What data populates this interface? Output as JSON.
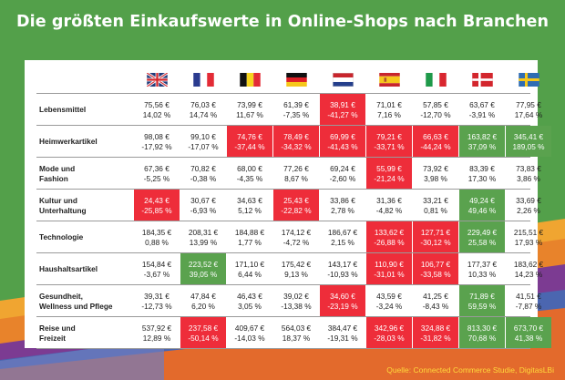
{
  "title": "Die größten Einkaufswerte in Online-Shops nach Branchen",
  "source": "Quelle: Connected Commerce Studie, DigitasLBi",
  "flags": [
    {
      "name": "uk-flag-icon"
    },
    {
      "name": "france-flag-icon"
    },
    {
      "name": "belgium-flag-icon"
    },
    {
      "name": "germany-flag-icon"
    },
    {
      "name": "netherlands-flag-icon"
    },
    {
      "name": "spain-flag-icon"
    },
    {
      "name": "italy-flag-icon"
    },
    {
      "name": "denmark-flag-icon"
    },
    {
      "name": "sweden-flag-icon"
    }
  ],
  "colors": {
    "red": "#ee2d3a",
    "green": "#5aa24e",
    "title": "#ffffff",
    "source": "#ffd93b"
  },
  "chart_data": {
    "type": "table",
    "columns": [
      "UK",
      "France",
      "Belgium",
      "Germany",
      "Netherlands",
      "Spain",
      "Italy",
      "Denmark",
      "Sweden"
    ],
    "rows": [
      {
        "label": "Lebensmittel",
        "cells": [
          {
            "value": "75,56 €",
            "change": "14,02 %",
            "highlight": ""
          },
          {
            "value": "76,03 €",
            "change": "14,74 %",
            "highlight": ""
          },
          {
            "value": "73,99 €",
            "change": "11,67 %",
            "highlight": ""
          },
          {
            "value": "61,39 €",
            "change": "-7,35 %",
            "highlight": ""
          },
          {
            "value": "38,91 €",
            "change": "-41,27 %",
            "highlight": "red"
          },
          {
            "value": "71,01 €",
            "change": "7,16 %",
            "highlight": ""
          },
          {
            "value": "57,85 €",
            "change": "-12,70 %",
            "highlight": ""
          },
          {
            "value": "63,67 €",
            "change": "-3,91 %",
            "highlight": ""
          },
          {
            "value": "77,95 €",
            "change": "17,64 %",
            "highlight": ""
          }
        ]
      },
      {
        "label": "Heimwerkartikel",
        "cells": [
          {
            "value": "98,08 €",
            "change": "-17,92 %",
            "highlight": ""
          },
          {
            "value": "99,10 €",
            "change": "-17,07 %",
            "highlight": ""
          },
          {
            "value": "74,76 €",
            "change": "-37,44 %",
            "highlight": "red"
          },
          {
            "value": "78,49 €",
            "change": "-34,32 %",
            "highlight": "red"
          },
          {
            "value": "69,99 €",
            "change": "-41,43 %",
            "highlight": "red"
          },
          {
            "value": "79,21 €",
            "change": "-33,71 %",
            "highlight": "red"
          },
          {
            "value": "66,63 €",
            "change": "-44,24 %",
            "highlight": "red"
          },
          {
            "value": "163,82 €",
            "change": "37,09 %",
            "highlight": "green"
          },
          {
            "value": "345,41 €",
            "change": "189,05 %",
            "highlight": "green"
          }
        ]
      },
      {
        "label": "Mode und\nFashion",
        "cells": [
          {
            "value": "67,36 €",
            "change": "-5,25 %",
            "highlight": ""
          },
          {
            "value": "70,82 €",
            "change": "-0,38 %",
            "highlight": ""
          },
          {
            "value": "68,00 €",
            "change": "-4,35 %",
            "highlight": ""
          },
          {
            "value": "77,26 €",
            "change": "8,67 %",
            "highlight": ""
          },
          {
            "value": "69,24 €",
            "change": "-2,60 %",
            "highlight": ""
          },
          {
            "value": "55,99 €",
            "change": "-21,24 %",
            "highlight": "red"
          },
          {
            "value": "73,92 €",
            "change": "3,98 %",
            "highlight": ""
          },
          {
            "value": "83,39 €",
            "change": "17,30 %",
            "highlight": ""
          },
          {
            "value": "73,83 €",
            "change": "3,86 %",
            "highlight": ""
          }
        ]
      },
      {
        "label": "Kultur und\nUnterhaltung",
        "cells": [
          {
            "value": "24,43 €",
            "change": "-25,85 %",
            "highlight": "red"
          },
          {
            "value": "30,67 €",
            "change": "-6,93 %",
            "highlight": ""
          },
          {
            "value": "34,63 €",
            "change": "5,12 %",
            "highlight": ""
          },
          {
            "value": "25,43 €",
            "change": "-22,82 %",
            "highlight": "red"
          },
          {
            "value": "33,86 €",
            "change": "2,78 %",
            "highlight": ""
          },
          {
            "value": "31,36 €",
            "change": "-4,82 %",
            "highlight": ""
          },
          {
            "value": "33,21 €",
            "change": "0,81 %",
            "highlight": ""
          },
          {
            "value": "49,24 €",
            "change": "49,46 %",
            "highlight": "green"
          },
          {
            "value": "33,69 €",
            "change": "2,26 %",
            "highlight": ""
          }
        ]
      },
      {
        "label": "Technologie",
        "cells": [
          {
            "value": "184,35 €",
            "change": "0,88 %",
            "highlight": ""
          },
          {
            "value": "208,31 €",
            "change": "13,99 %",
            "highlight": ""
          },
          {
            "value": "184,88 €",
            "change": "1,77 %",
            "highlight": ""
          },
          {
            "value": "174,12 €",
            "change": "-4,72 %",
            "highlight": ""
          },
          {
            "value": "186,67 €",
            "change": "2,15 %",
            "highlight": ""
          },
          {
            "value": "133,62 €",
            "change": "-26,88 %",
            "highlight": "red"
          },
          {
            "value": "127,71 €",
            "change": "-30,12 %",
            "highlight": "red"
          },
          {
            "value": "229,49 €",
            "change": "25,58 %",
            "highlight": "green"
          },
          {
            "value": "215,51 €",
            "change": "17,93 %",
            "highlight": ""
          }
        ]
      },
      {
        "label": "Haushaltsartikel",
        "cells": [
          {
            "value": "154,84 €",
            "change": "-3,67 %",
            "highlight": ""
          },
          {
            "value": "223,52 €",
            "change": "39,05 %",
            "highlight": "green"
          },
          {
            "value": "171,10 €",
            "change": "6,44 %",
            "highlight": ""
          },
          {
            "value": "175,42 €",
            "change": "9,13 %",
            "highlight": ""
          },
          {
            "value": "143,17 €",
            "change": "-10,93 %",
            "highlight": ""
          },
          {
            "value": "110,90 €",
            "change": "-31,01 %",
            "highlight": "red"
          },
          {
            "value": "106,77 €",
            "change": "-33,58 %",
            "highlight": "red"
          },
          {
            "value": "177,37 €",
            "change": "10,33 %",
            "highlight": ""
          },
          {
            "value": "183,62 €",
            "change": "14,23 %",
            "highlight": ""
          }
        ]
      },
      {
        "label": "Gesundheit,\nWellness und Pflege",
        "cells": [
          {
            "value": "39,31 €",
            "change": "-12,73 %",
            "highlight": ""
          },
          {
            "value": "47,84 €",
            "change": "6,20 %",
            "highlight": ""
          },
          {
            "value": "46,43 €",
            "change": "3,05 %",
            "highlight": ""
          },
          {
            "value": "39,02 €",
            "change": "-13,38 %",
            "highlight": ""
          },
          {
            "value": "34,60 €",
            "change": "-23,19 %",
            "highlight": "red"
          },
          {
            "value": "43,59 €",
            "change": "-3,24 %",
            "highlight": ""
          },
          {
            "value": "41,25 €",
            "change": "-8,43 %",
            "highlight": ""
          },
          {
            "value": "71,89 €",
            "change": "59,59 %",
            "highlight": "green"
          },
          {
            "value": "41,51 €",
            "change": "-7,87 %",
            "highlight": ""
          }
        ]
      },
      {
        "label": "Reise und\nFreizeit",
        "cells": [
          {
            "value": "537,92 €",
            "change": "12,89 %",
            "highlight": ""
          },
          {
            "value": "237,58 €",
            "change": "-50,14 %",
            "highlight": "red"
          },
          {
            "value": "409,67 €",
            "change": "-14,03 %",
            "highlight": ""
          },
          {
            "value": "564,03 €",
            "change": "18,37 %",
            "highlight": ""
          },
          {
            "value": "384,47 €",
            "change": "-19,31 %",
            "highlight": ""
          },
          {
            "value": "342,96 €",
            "change": "-28,03 %",
            "highlight": "red"
          },
          {
            "value": "324,88 €",
            "change": "-31,82 %",
            "highlight": "red"
          },
          {
            "value": "813,30 €",
            "change": "70,68 %",
            "highlight": "green"
          },
          {
            "value": "673,70 €",
            "change": "41,38 %",
            "highlight": "green"
          }
        ]
      }
    ]
  }
}
